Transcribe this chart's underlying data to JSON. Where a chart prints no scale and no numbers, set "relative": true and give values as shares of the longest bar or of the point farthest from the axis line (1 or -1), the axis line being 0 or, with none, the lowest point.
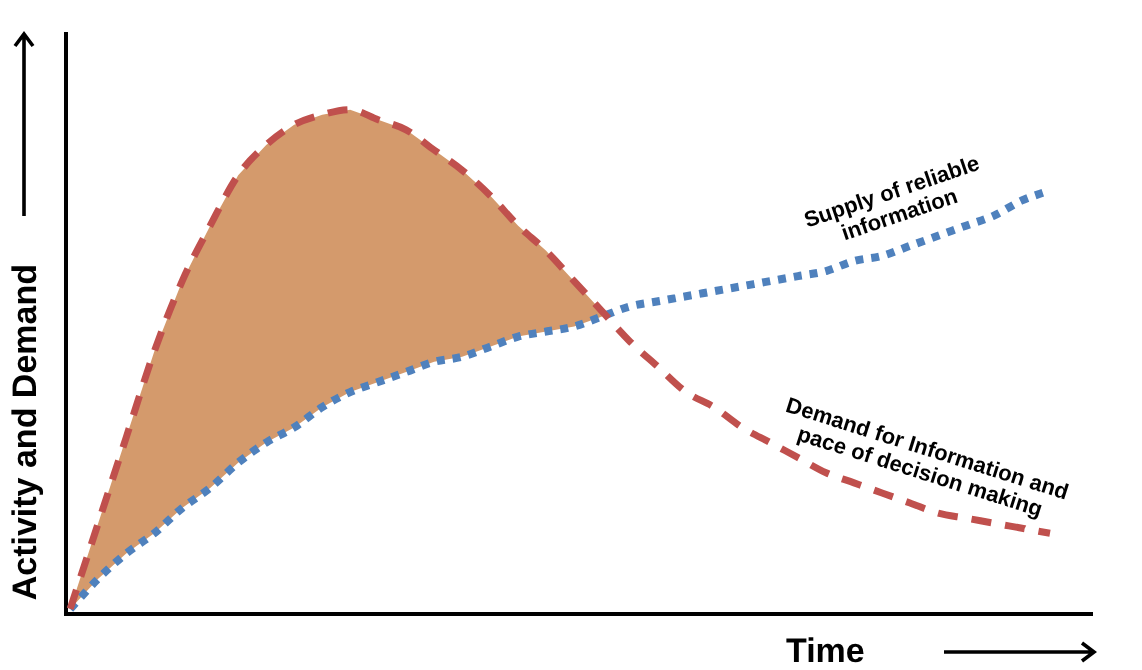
{
  "chart_data": {
    "type": "line",
    "relative": true,
    "xlabel": "Time",
    "ylabel": "Activity and Demand",
    "marker": "none",
    "categories": [
      null,
      null,
      null,
      null,
      null,
      null,
      null,
      null,
      null,
      null,
      null,
      null,
      null,
      null,
      null,
      null,
      null,
      null,
      null,
      null,
      null,
      null,
      null,
      null,
      null,
      null,
      null,
      null,
      null,
      null,
      null,
      null,
      null,
      null,
      null,
      null
    ],
    "series": [
      {
        "name": "Demand for Information and pace of decision making",
        "color": "#c0504d",
        "line_style": "dashed",
        "values": [
          0.01,
          0.18,
          0.35,
          0.52,
          0.66,
          0.77,
          0.87,
          0.93,
          0.97,
          0.99,
          1.0,
          0.98,
          0.96,
          0.92,
          0.88,
          0.83,
          0.77,
          0.72,
          0.66,
          0.6,
          0.54,
          0.49,
          0.44,
          0.41,
          0.37,
          0.34,
          0.31,
          0.28,
          0.26,
          0.24,
          0.22,
          0.2,
          0.19,
          0.18,
          0.17,
          0.16
        ],
        "upper": [
          0.01,
          0.18,
          0.35,
          0.52,
          0.66,
          0.77,
          0.87,
          0.93,
          0.97,
          0.99,
          1.0,
          0.98,
          0.96,
          0.92,
          0.88,
          0.83,
          0.77,
          0.72,
          0.66,
          0.6,
          null,
          null,
          null,
          null,
          null,
          null,
          null,
          null,
          null,
          null,
          null,
          null,
          null,
          null,
          null,
          null
        ],
        "lower": [
          0.01,
          0.07,
          0.12,
          0.16,
          0.21,
          0.25,
          0.3,
          0.34,
          0.37,
          0.41,
          0.44,
          0.46,
          0.48,
          0.5,
          0.51,
          0.53,
          0.55,
          0.56,
          0.57,
          0.59,
          null,
          null,
          null,
          null,
          null,
          null,
          null,
          null,
          null,
          null,
          null,
          null,
          null,
          null,
          null,
          null
        ]
      },
      {
        "name": "Supply of reliable information",
        "color": "#4f81bd",
        "line_style": "dotted",
        "values": [
          0.01,
          0.07,
          0.12,
          0.16,
          0.21,
          0.25,
          0.3,
          0.34,
          0.37,
          0.41,
          0.44,
          0.46,
          0.48,
          0.5,
          0.51,
          0.53,
          0.55,
          0.56,
          0.57,
          0.59,
          0.61,
          0.62,
          0.63,
          0.64,
          0.65,
          0.66,
          0.67,
          0.68,
          0.7,
          0.71,
          0.73,
          0.75,
          0.77,
          0.79,
          0.82,
          0.84
        ]
      }
    ]
  }
}
